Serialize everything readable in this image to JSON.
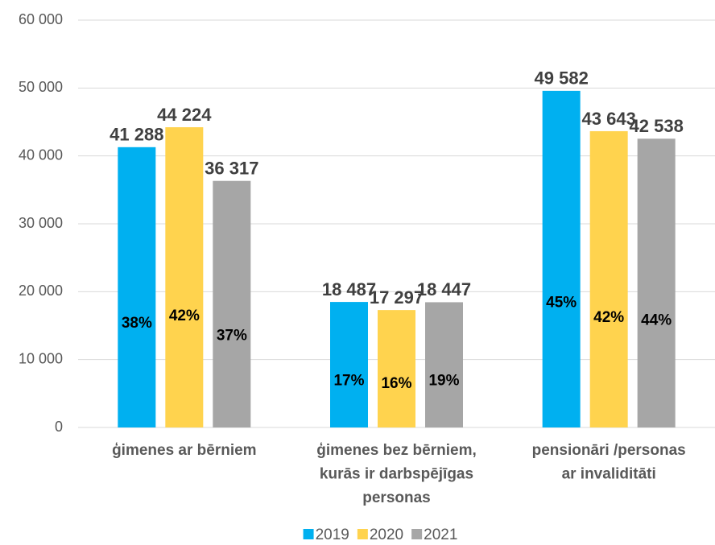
{
  "chart_data": {
    "type": "bar",
    "categories": [
      "ģimenes ar bērniem",
      "ģimenes bez bērniem,\nkurās ir darbspējīgas\npersonas",
      "pensionāri /personas\nar invaliditāti"
    ],
    "series": [
      {
        "name": "2019",
        "color": "#00b0f0",
        "values": [
          41288,
          18487,
          49582
        ],
        "value_labels": [
          "41 288",
          "18 487",
          "49 582"
        ],
        "shares": [
          38,
          17,
          45
        ],
        "share_labels": [
          "38%",
          "17%",
          "45%"
        ]
      },
      {
        "name": "2020",
        "color": "#ffd34e",
        "values": [
          44224,
          17297,
          43643
        ],
        "value_labels": [
          "44 224",
          "17 297",
          "43 643"
        ],
        "shares": [
          42,
          16,
          42
        ],
        "share_labels": [
          "42%",
          "16%",
          "42%"
        ]
      },
      {
        "name": "2021",
        "color": "#a6a6a6",
        "values": [
          36317,
          18447,
          42538
        ],
        "value_labels": [
          "36 317",
          "18 447",
          "42 538"
        ],
        "shares": [
          37,
          19,
          44
        ],
        "share_labels": [
          "37%",
          "19%",
          "44%"
        ]
      }
    ],
    "ylim": [
      0,
      60000
    ],
    "yticks": [
      0,
      {
        "value": 10000,
        "label": "10 000"
      },
      {
        "value": 20000,
        "label": "20 000"
      },
      {
        "value": 30000,
        "label": "30 000"
      },
      {
        "value": 40000,
        "label": "40 000"
      },
      {
        "value": 50000,
        "label": "50 000"
      },
      {
        "value": 60000,
        "label": "60 000"
      }
    ],
    "grid": true,
    "legend": "bottom"
  }
}
